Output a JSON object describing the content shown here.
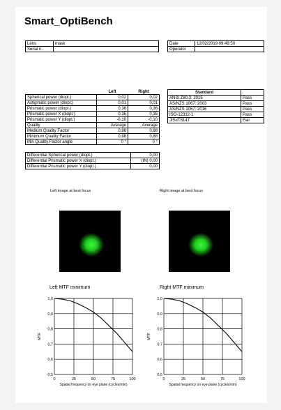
{
  "title": "Smart_OptiBench",
  "info_left": [
    {
      "label": "Lens",
      "value": "mask"
    },
    {
      "label": "Serial n.",
      "value": ""
    }
  ],
  "info_right": [
    {
      "label": "Date",
      "value": "12/02/2019 09:49:50"
    },
    {
      "label": "Operator",
      "value": ""
    }
  ],
  "measures": {
    "headers": [
      "",
      "Left",
      "Right"
    ],
    "rows": [
      [
        "Spherical power (diopt.)",
        "0,02",
        "0,02"
      ],
      [
        "Astigmatic power (diopt.)",
        "0,01",
        "0,01"
      ],
      [
        "Prismatic power (diopt.)",
        "0,36",
        "0,36"
      ],
      [
        "Prismatic power X (diopt.)",
        "0,35",
        "0,35"
      ],
      [
        "Prismatic power Y (diopt.)",
        "-0,10",
        "-0,10"
      ],
      [
        "Quality",
        "Average",
        "Average"
      ],
      [
        "Medium Quality Factor",
        "0,88",
        "0,88"
      ],
      [
        "Minimum Quality Factor",
        "0,88",
        "0,88"
      ],
      [
        "Min Quality Factor angle",
        "0 °",
        "0 °"
      ]
    ]
  },
  "standards": {
    "header": "Standard",
    "rows": [
      [
        "ANSI Z80.3: 2015",
        "Pass"
      ],
      [
        "AS/NZS 1067: 2003",
        "Pass"
      ],
      [
        "AS/NZS 1067: 2016",
        "Pass"
      ],
      [
        "ISO-12312-1",
        "Pass"
      ],
      [
        "JIS#T8147",
        "Fail"
      ]
    ]
  },
  "differential": [
    [
      "Differential Spherical power (diopt.)",
      "0,00"
    ],
    [
      "Differential Prismatic power X (diopt.)",
      "(IN) 0,00"
    ],
    [
      "Differential Prismatic power Y (diopt.)",
      "0,00"
    ]
  ],
  "images": {
    "left_label": "Left image at best focus",
    "right_label": "Right image at best focus",
    "spot_color": "#22dd22"
  },
  "mtf": {
    "left_title": "Left MTF minimum",
    "right_title": "Right MTF minimum",
    "ylabel": "MTF",
    "xlabel": "Spatial frequency on eye plane (cycles/mm)",
    "x_ticks": [
      "0",
      "25",
      "50",
      "75",
      "100"
    ],
    "y_ticks": [
      "1,0",
      "0,9",
      "0,8",
      "0,7",
      "0,6",
      "0,5"
    ]
  },
  "chart_data": [
    {
      "type": "line",
      "title": "Left MTF minimum",
      "xlabel": "Spatial frequency on eye plane (cycles/mm)",
      "ylabel": "MTF",
      "xlim": [
        0,
        100
      ],
      "ylim": [
        0.5,
        1.0
      ],
      "grid": true,
      "x": [
        0,
        10,
        20,
        30,
        40,
        50,
        60,
        70,
        80,
        90,
        100
      ],
      "y": [
        1.0,
        0.995,
        0.985,
        0.965,
        0.94,
        0.91,
        0.87,
        0.82,
        0.77,
        0.71,
        0.65
      ]
    },
    {
      "type": "line",
      "title": "Right MTF minimum",
      "xlabel": "Spatial frequency on eye plane (cycles/mm)",
      "ylabel": "MTF",
      "xlim": [
        0,
        100
      ],
      "ylim": [
        0.5,
        1.0
      ],
      "grid": true,
      "x": [
        0,
        10,
        20,
        30,
        40,
        50,
        60,
        70,
        80,
        90,
        100
      ],
      "y": [
        1.0,
        0.995,
        0.985,
        0.965,
        0.94,
        0.91,
        0.87,
        0.82,
        0.77,
        0.71,
        0.65
      ]
    }
  ]
}
